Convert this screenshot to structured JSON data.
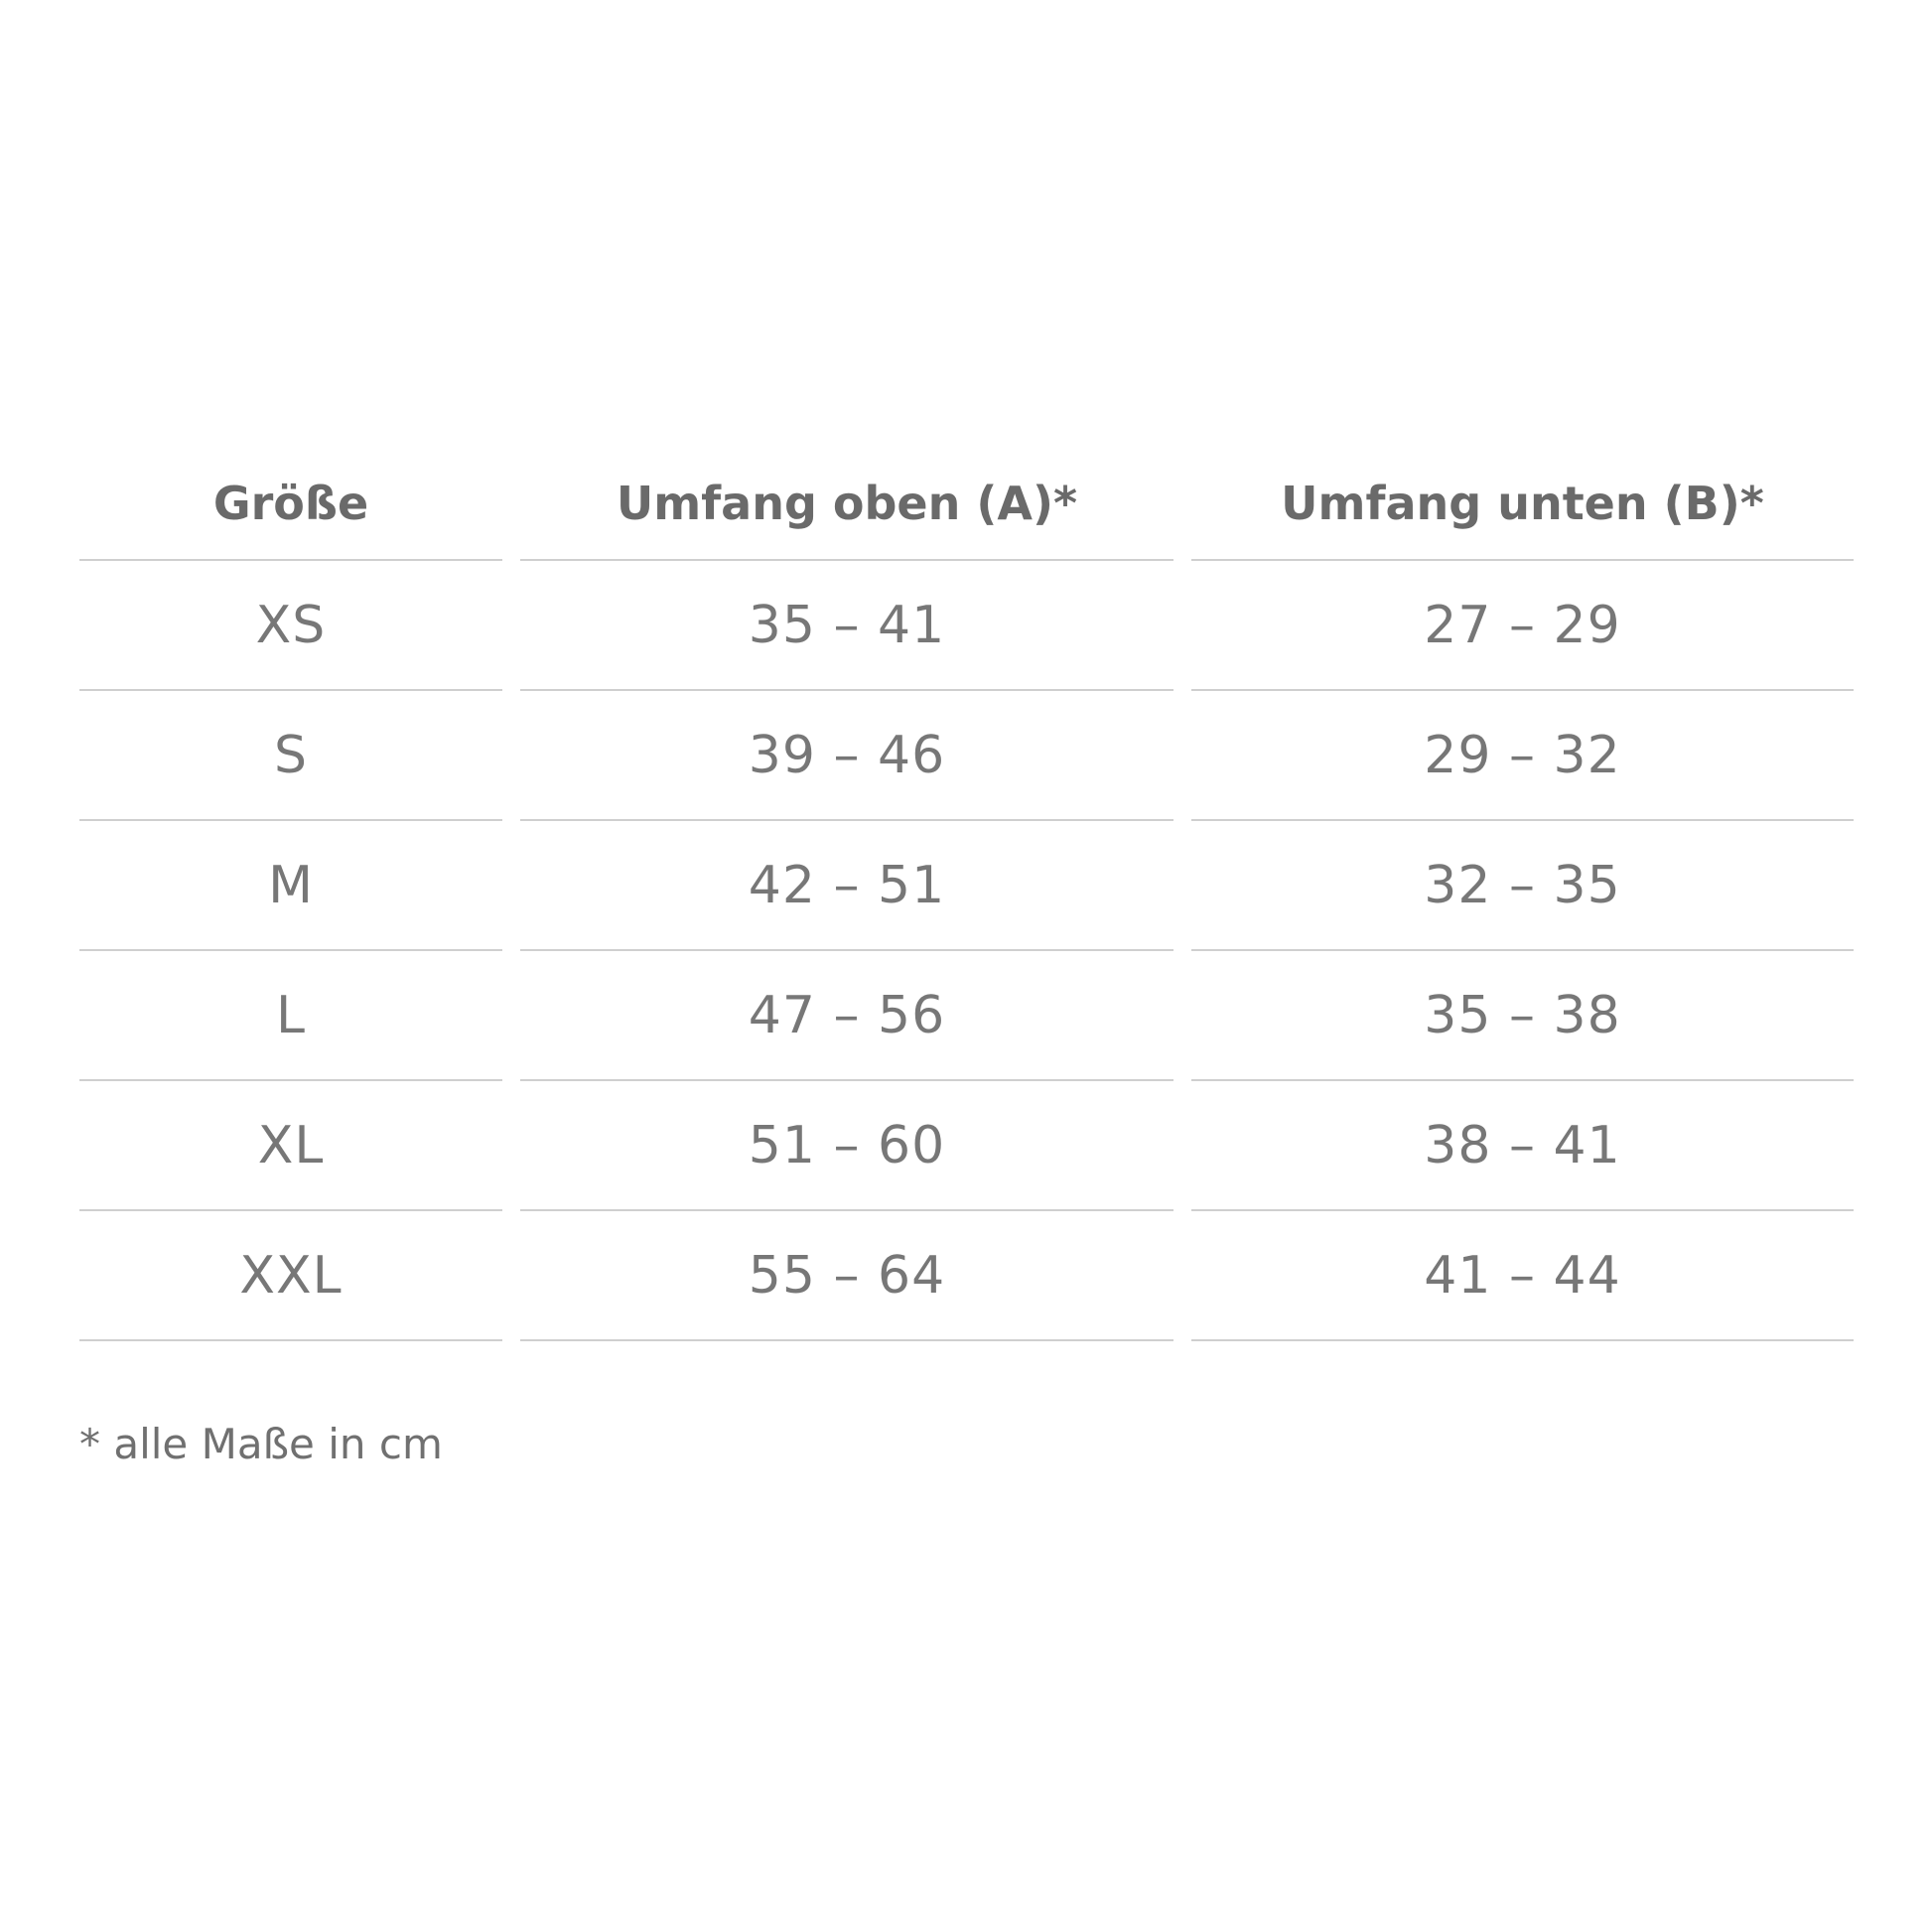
{
  "table": {
    "headers": [
      "Größe",
      "Umfang oben (A)*",
      "Umfang unten (B)*"
    ],
    "rows": [
      [
        "XS",
        "35 – 41",
        "27 – 29"
      ],
      [
        "S",
        "39 – 46",
        "29 – 32"
      ],
      [
        "M",
        "42 – 51",
        "32 – 35"
      ],
      [
        "L",
        "47 – 56",
        "35 – 38"
      ],
      [
        "XL",
        "51 – 60",
        "38 – 41"
      ],
      [
        "XXL",
        "55 – 64",
        "41 – 44"
      ]
    ]
  },
  "footnote": "* alle Maße in cm"
}
